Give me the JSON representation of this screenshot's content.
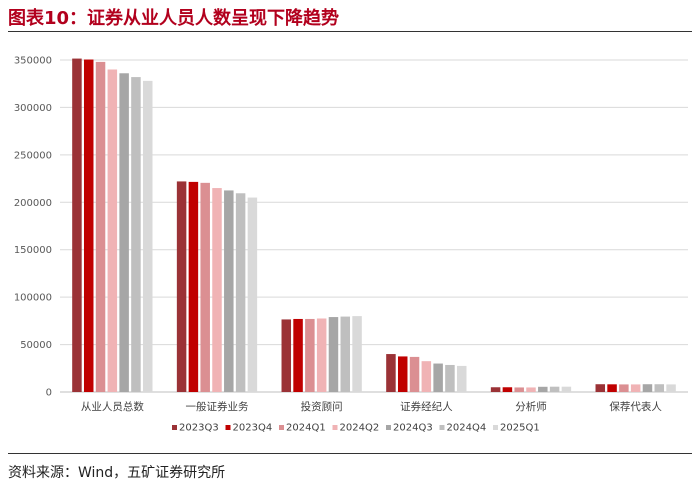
{
  "header": {
    "title": "图表10：证券从业人员人数呈现下降趋势"
  },
  "footer": {
    "source": "资料来源：Wind，五矿证券研究所"
  },
  "chart_data": {
    "type": "bar",
    "title": "",
    "xlabel": "",
    "ylabel": "",
    "ylim": [
      0,
      350000
    ],
    "yticks": [
      0,
      50000,
      100000,
      150000,
      200000,
      250000,
      300000,
      350000
    ],
    "grid": true,
    "legend_position": "bottom",
    "categories": [
      "从业人员总数",
      "一般证券业务",
      "投资顾问",
      "证券经纪人",
      "分析师",
      "保荐代表人"
    ],
    "series": [
      {
        "name": "2023Q3",
        "color": "#9b3236",
        "values": [
          351500,
          222000,
          76500,
          40000,
          5000,
          8200
        ]
      },
      {
        "name": "2023Q4",
        "color": "#c00000",
        "values": [
          350500,
          221500,
          77000,
          37500,
          5000,
          8100
        ]
      },
      {
        "name": "2024Q1",
        "color": "#db8f92",
        "values": [
          348000,
          220500,
          77000,
          37000,
          4800,
          8000
        ]
      },
      {
        "name": "2024Q2",
        "color": "#f0b3b5",
        "values": [
          340000,
          215000,
          77500,
          32500,
          4800,
          8000
        ]
      },
      {
        "name": "2024Q3",
        "color": "#a6a6a6",
        "values": [
          336000,
          212500,
          79000,
          30000,
          5500,
          8200
        ]
      },
      {
        "name": "2024Q4",
        "color": "#bfbfbf",
        "values": [
          332000,
          209500,
          79500,
          28500,
          5600,
          8200
        ]
      },
      {
        "name": "2025Q1",
        "color": "#d9d9d9",
        "values": [
          328000,
          205000,
          80000,
          27500,
          5600,
          8000
        ]
      }
    ]
  }
}
